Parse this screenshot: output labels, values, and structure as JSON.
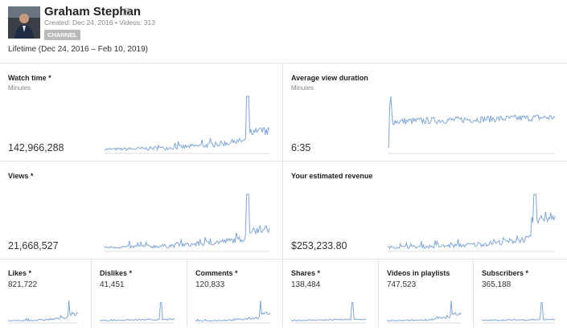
{
  "header": {
    "name": "Graham Stephan",
    "meta": "Created: Dec 24, 2016 • Videos: 313",
    "badge": "CHANNEL"
  },
  "period": "Lifetime (Dec 24, 2016 – Feb 10, 2019)",
  "metrics": [
    {
      "title": "Watch time *",
      "unit": "Minutes",
      "value": "142,966,288"
    },
    {
      "title": "Average view duration",
      "unit": "Minutes",
      "value": "6:35"
    },
    {
      "title": "Views *",
      "value": "21,668,527"
    },
    {
      "title": "Your estimated revenue",
      "value": "$253,233.80"
    },
    {
      "title": "Likes *",
      "value": "821,722"
    },
    {
      "title": "Dislikes *",
      "value": "41,451"
    },
    {
      "title": "Comments *",
      "value": "120,833"
    },
    {
      "title": "Shares *",
      "value": "138,484"
    },
    {
      "title": "Videos in playlists",
      "value": "747,523"
    },
    {
      "title": "Subscribers *",
      "value": "365,188"
    }
  ]
}
